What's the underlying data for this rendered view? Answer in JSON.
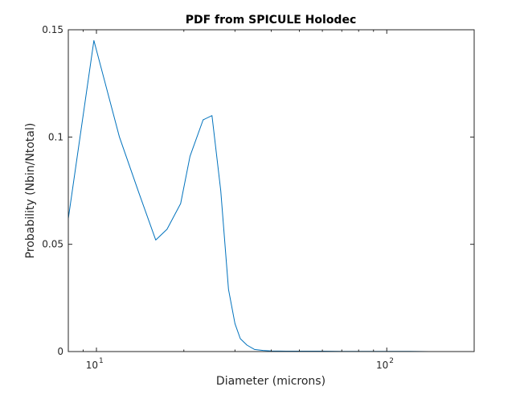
{
  "chart_data": {
    "type": "line",
    "title": "PDF from SPICULE Holodec",
    "xlabel": "Diameter (microns)",
    "ylabel": "Probability (Nbin/Ntotal)",
    "x_scale": "log",
    "xlim": [
      8,
      200
    ],
    "ylim": [
      0,
      0.15
    ],
    "x_ticks": [
      {
        "value": 10,
        "base": "10",
        "exponent": "1"
      },
      {
        "value": 100,
        "base": "10",
        "exponent": "2"
      }
    ],
    "y_ticks": [
      {
        "value": 0,
        "label": "0"
      },
      {
        "value": 0.05,
        "label": "0.05"
      },
      {
        "value": 0.1,
        "label": "0.1"
      },
      {
        "value": 0.15,
        "label": "0.15"
      }
    ],
    "grid": false,
    "line_color": "#0072bd",
    "series": [
      {
        "x": [
          8.0,
          9.8,
          12.0,
          14.0,
          16.0,
          17.5,
          19.5,
          21.0,
          23.3,
          25.0,
          26.8,
          28.5,
          30.0,
          31.3,
          33.0,
          35.0,
          37.5,
          40.0,
          45.0,
          50.0,
          60.0,
          70.0,
          80.0,
          90.0,
          100.0,
          120.0,
          140.0,
          160.0,
          180.0,
          200.0
        ],
        "y": [
          0.062,
          0.145,
          0.1,
          0.074,
          0.052,
          0.057,
          0.069,
          0.091,
          0.108,
          0.11,
          0.075,
          0.029,
          0.013,
          0.006,
          0.003,
          0.001,
          0.0005,
          0.0003,
          0.0002,
          0.0002,
          0.0002,
          0.0001,
          0.0001,
          0.0001,
          0.0001,
          0.0001,
          0.0,
          0.0,
          0.0,
          0.0
        ]
      }
    ]
  }
}
